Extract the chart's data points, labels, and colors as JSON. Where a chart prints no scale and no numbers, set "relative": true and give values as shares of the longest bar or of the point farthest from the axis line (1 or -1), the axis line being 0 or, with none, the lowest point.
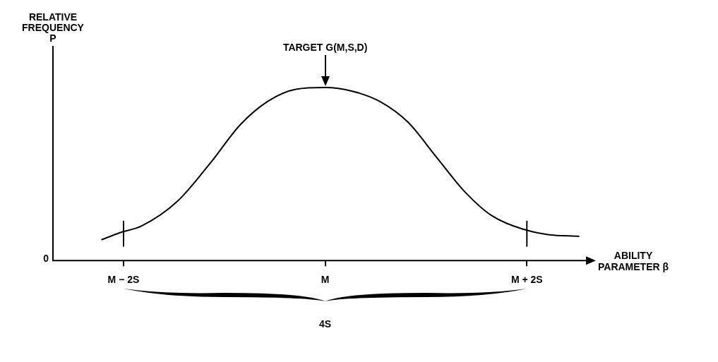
{
  "chart_data": {
    "type": "line",
    "relative": true,
    "ylabel": "RELATIVE FREQUENCY P",
    "xlabel": "ABILITY PARAMETER β",
    "x": [
      -2.22,
      -2.04,
      -1.82,
      -1.47,
      -1.13,
      -0.85,
      -0.57,
      -0.29,
      0,
      0.26,
      0.54,
      0.82,
      1.1,
      1.38,
      1.65,
      1.97,
      2.21,
      2.52
    ],
    "values": [
      0.12,
      0.16,
      0.2,
      0.34,
      0.57,
      0.78,
      0.92,
      0.99,
      1,
      0.98,
      0.92,
      0.8,
      0.6,
      0.4,
      0.26,
      0.18,
      0.15,
      0.14
    ],
    "color": "#000000",
    "marker": "none",
    "line_style": "solid",
    "xlim": [
      -2.7,
      2.6
    ],
    "xticks": [
      {
        "value": -2,
        "label": "M − 2S"
      },
      {
        "value": 0,
        "label": "M"
      },
      {
        "value": 2,
        "label": "M + 2S"
      }
    ],
    "ref_lines": [
      {
        "axis": "x",
        "value": -2
      },
      {
        "axis": "x",
        "value": 2
      }
    ],
    "annotations": [
      "TARGET G(M,S,D)",
      "4S",
      "0"
    ],
    "legend": false,
    "grid": false
  }
}
